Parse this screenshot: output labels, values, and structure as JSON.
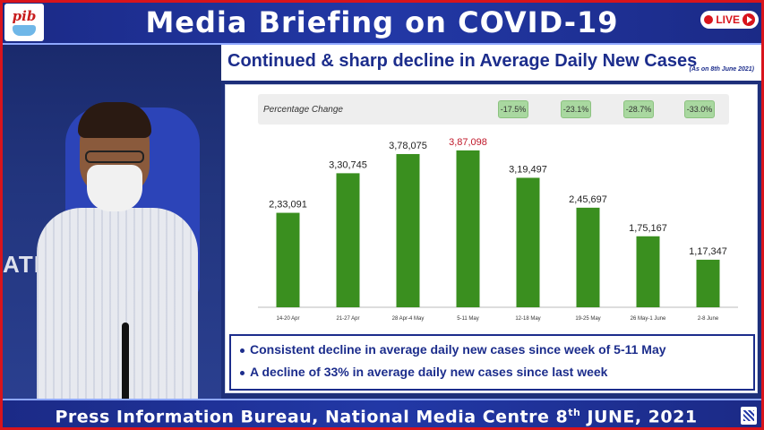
{
  "banner": {
    "logo_text": "pib",
    "title": "Media Briefing on COVID-19",
    "live_label": "LIVE"
  },
  "video": {
    "wall_text": "ATIONAL"
  },
  "slide": {
    "title": "Continued & sharp decline in Average Daily New Cases",
    "date_note": "(As on 8th June 2021)",
    "percentage_label": "Percentage Change",
    "percentage_changes": [
      "-17.5%",
      "-23.1%",
      "-28.7%",
      "-33.0%"
    ],
    "bullets": [
      "Consistent decline in average daily new cases since week of 5-11 May",
      "A decline of 33% in average daily new cases since last week"
    ]
  },
  "chart_data": {
    "type": "bar",
    "categories": [
      "14-20 Apr",
      "21-27 Apr",
      "28 Apr-4 May",
      "5-11 May",
      "12-18 May",
      "19-25 May",
      "26 May-1 June",
      "2-8 June"
    ],
    "values": [
      233091,
      330745,
      378075,
      387098,
      319497,
      245697,
      175167,
      117347
    ],
    "data_labels": [
      "2,33,091",
      "3,30,745",
      "3,78,075",
      "3,87,098",
      "3,19,497",
      "2,45,697",
      "1,75,167",
      "1,17,347"
    ],
    "highlight_index": 3,
    "bar_color": "#3a8f1f",
    "highlight_label_color": "#c0182a",
    "label_color": "#222222",
    "title": "",
    "xlabel": "",
    "ylabel": "",
    "ylim": [
      0,
      420000
    ],
    "grid": false
  },
  "footer": {
    "text_prefix": "Press Information Bureau, National Media Centre  8",
    "text_sup": "th",
    "text_suffix": " JUNE, 2021"
  }
}
